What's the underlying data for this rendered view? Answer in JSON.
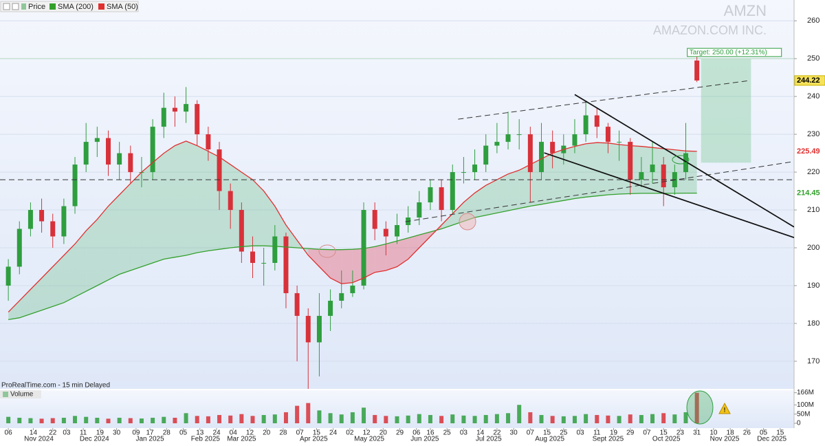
{
  "chart_data": {
    "type": "candlestick",
    "title": "AMZN",
    "subtitle": "AMAZON.COM INC.",
    "source": "ProRealTime.com - 15 min Delayed",
    "grid": true,
    "xlim": [
      -3,
      283
    ],
    "ylim": [
      162.7,
      265.5
    ],
    "yticks": [
      170,
      180,
      190,
      200,
      210,
      220,
      230,
      240,
      250,
      260
    ],
    "xticks": [
      {
        "value": 0,
        "label": "06"
      },
      {
        "value": 9,
        "label": "14"
      },
      {
        "value": 16,
        "label": "22"
      },
      {
        "value": 21,
        "label": "03"
      },
      {
        "value": 27,
        "label": "11"
      },
      {
        "value": 33,
        "label": "19"
      },
      {
        "value": 39,
        "label": "30"
      },
      {
        "value": 46,
        "label": "09"
      },
      {
        "value": 51,
        "label": "17"
      },
      {
        "value": 57,
        "label": "28"
      },
      {
        "value": 63,
        "label": "05"
      },
      {
        "value": 69,
        "label": "13"
      },
      {
        "value": 75,
        "label": "24"
      },
      {
        "value": 81,
        "label": "04"
      },
      {
        "value": 87,
        "label": "12"
      },
      {
        "value": 93,
        "label": "20"
      },
      {
        "value": 99,
        "label": "28"
      },
      {
        "value": 105,
        "label": "07"
      },
      {
        "value": 111,
        "label": "15"
      },
      {
        "value": 117,
        "label": "24"
      },
      {
        "value": 123,
        "label": "02"
      },
      {
        "value": 129,
        "label": "12"
      },
      {
        "value": 135,
        "label": "20"
      },
      {
        "value": 141,
        "label": "29"
      },
      {
        "value": 147,
        "label": "06"
      },
      {
        "value": 152,
        "label": "16"
      },
      {
        "value": 158,
        "label": "25"
      },
      {
        "value": 164,
        "label": "03"
      },
      {
        "value": 170,
        "label": "14"
      },
      {
        "value": 176,
        "label": "22"
      },
      {
        "value": 182,
        "label": "30"
      },
      {
        "value": 188,
        "label": "07"
      },
      {
        "value": 194,
        "label": "15"
      },
      {
        "value": 200,
        "label": "25"
      },
      {
        "value": 206,
        "label": "03"
      },
      {
        "value": 212,
        "label": "11"
      },
      {
        "value": 218,
        "label": "19"
      },
      {
        "value": 224,
        "label": "29"
      },
      {
        "value": 230,
        "label": "07"
      },
      {
        "value": 236,
        "label": "15"
      },
      {
        "value": 242,
        "label": "23"
      },
      {
        "value": 248,
        "label": "31"
      },
      {
        "value": 254,
        "label": "10"
      },
      {
        "value": 260,
        "label": "18"
      },
      {
        "value": 266,
        "label": "26"
      },
      {
        "value": 272,
        "label": "05"
      },
      {
        "value": 278,
        "label": "15"
      }
    ],
    "month_ticks": [
      {
        "value": 11,
        "label": "Nov 2024"
      },
      {
        "value": 31,
        "label": "Dec 2024"
      },
      {
        "value": 51,
        "label": "Jan 2025"
      },
      {
        "value": 71,
        "label": "Feb 2025"
      },
      {
        "value": 84,
        "label": "Mar 2025"
      },
      {
        "value": 110,
        "label": "Apr 2025"
      },
      {
        "value": 130,
        "label": "May 2025"
      },
      {
        "value": 150,
        "label": "Jun 2025"
      },
      {
        "value": 173,
        "label": "Jul 2025"
      },
      {
        "value": 195,
        "label": "Aug 2025"
      },
      {
        "value": 216,
        "label": "Sept 2025"
      },
      {
        "value": 237,
        "label": "Oct 2025"
      },
      {
        "value": 258,
        "label": "Nov 2025"
      },
      {
        "value": 275,
        "label": "Dec 2025"
      }
    ],
    "candles": {
      "name": "Price",
      "up_color": "#2e9e3e",
      "down_color": "#d8313a",
      "x": [
        0,
        4,
        8,
        12,
        16,
        20,
        24,
        28,
        32,
        36,
        40,
        44,
        48,
        52,
        56,
        60,
        64,
        68,
        72,
        76,
        80,
        84,
        88,
        92,
        96,
        100,
        104,
        108,
        112,
        116,
        120,
        124,
        128,
        132,
        136,
        140,
        144,
        148,
        152,
        156,
        160,
        164,
        168,
        172,
        176,
        180,
        184,
        188,
        192,
        196,
        200,
        204,
        208,
        212,
        216,
        220,
        224,
        228,
        232,
        236,
        240,
        244,
        248
      ],
      "open": [
        190,
        195,
        205,
        210,
        207,
        203,
        211,
        222,
        228,
        229,
        222,
        225,
        220,
        220,
        232,
        237,
        236,
        238,
        230,
        226,
        215,
        210,
        199,
        196,
        196,
        203,
        188,
        182,
        175,
        182,
        186,
        188,
        190,
        210,
        205,
        203,
        206,
        208,
        212,
        216,
        210,
        220,
        220,
        222,
        227,
        228,
        230,
        230,
        220,
        228,
        225,
        227,
        230,
        235,
        232,
        228,
        228,
        218,
        220,
        222,
        216,
        220,
        249.5
      ],
      "high": [
        197,
        207,
        212,
        213,
        209,
        213,
        224,
        233,
        232,
        231,
        228,
        227,
        224,
        234,
        241,
        240,
        242.5,
        239,
        232,
        228,
        217,
        212,
        203,
        200,
        206,
        204,
        190,
        184,
        188,
        189,
        194,
        194,
        212,
        212,
        207,
        209,
        211,
        215,
        218,
        218,
        222,
        224,
        226,
        230,
        233,
        236,
        234,
        232,
        233,
        231,
        230,
        234,
        238.9,
        237,
        233,
        231,
        229,
        224,
        228,
        224,
        222,
        233,
        250.5
      ],
      "low": [
        186,
        193,
        203,
        204,
        200,
        201,
        209,
        220,
        224,
        219,
        218,
        217,
        216,
        218,
        229,
        232,
        233,
        227,
        223,
        210,
        205,
        196,
        192,
        190,
        194,
        184,
        170,
        161.5,
        166,
        178,
        184,
        187,
        189,
        202,
        198,
        201,
        204,
        206,
        210,
        207,
        209,
        217,
        218,
        220,
        225,
        226,
        226,
        212,
        218,
        221,
        222,
        225,
        228,
        229,
        225,
        223,
        214,
        216,
        217,
        211,
        214,
        218,
        243.8
      ],
      "close": [
        195,
        205,
        210,
        207,
        203,
        211,
        222,
        228,
        229,
        222,
        225,
        220,
        220,
        232,
        237,
        236,
        238,
        230,
        226,
        215,
        210,
        199,
        196,
        196,
        203,
        188,
        182,
        175,
        182,
        186,
        188,
        190,
        210,
        205,
        203,
        206,
        208,
        212,
        216,
        210,
        220,
        220,
        222,
        227,
        228,
        230,
        230,
        220,
        228,
        225,
        227,
        230,
        235,
        232,
        228,
        228,
        218,
        220,
        222,
        216,
        220,
        225,
        244.22
      ]
    },
    "series": [
      {
        "name": "SMA (200)",
        "color": "#33a02c",
        "values": [
          181,
          181.5,
          182.5,
          183.5,
          184.5,
          185.5,
          187,
          188.5,
          190,
          191.5,
          193,
          194,
          195,
          196,
          197,
          197.5,
          198,
          198.7,
          199.2,
          199.6,
          200,
          200.3,
          200.5,
          200.5,
          200.4,
          200.2,
          200,
          199.8,
          199.6,
          199.5,
          199.5,
          199.6,
          199.8,
          200.3,
          201,
          201.8,
          202.6,
          203.4,
          204.2,
          205,
          206,
          207,
          208,
          208.6,
          209.2,
          209.8,
          210.4,
          211,
          211.5,
          212,
          212.5,
          213,
          213.4,
          213.7,
          214,
          214.2,
          214.3,
          214.4,
          214.4,
          214.4,
          214.4,
          214.45,
          214.45
        ]
      },
      {
        "name": "SMA (50)",
        "color": "#e03030",
        "values": [
          183,
          186,
          189,
          192,
          195,
          198,
          201,
          204.5,
          207.5,
          211,
          214,
          217,
          220,
          222.5,
          225,
          227,
          228.2,
          227,
          225.5,
          224,
          222,
          220,
          218,
          215,
          211,
          206,
          202,
          198,
          195,
          192,
          190.5,
          190.8,
          192,
          193.5,
          194,
          195,
          197,
          200,
          203,
          206,
          209,
          212,
          214.5,
          216.5,
          218,
          219.5,
          220.5,
          222,
          223.5,
          225,
          226,
          226.8,
          227.5,
          227.8,
          227.7,
          227.3,
          227,
          226.8,
          226.5,
          226.2,
          225.9,
          225.6,
          225.49
        ]
      }
    ],
    "volume": {
      "name": "Volume",
      "ylim": [
        0,
        172000000
      ],
      "yticks": [
        0,
        {
          "value": 50000000,
          "label": "50M"
        },
        {
          "value": 100000000,
          "label": "100M"
        },
        {
          "value": 166000000,
          "label": "166M"
        }
      ],
      "values": [
        35000000,
        30000000,
        28000000,
        25000000,
        28000000,
        30000000,
        40000000,
        35000000,
        30000000,
        25000000,
        30000000,
        28000000,
        26000000,
        30000000,
        35000000,
        30000000,
        55000000,
        40000000,
        38000000,
        45000000,
        42000000,
        50000000,
        40000000,
        45000000,
        48000000,
        60000000,
        95000000,
        110000000,
        70000000,
        55000000,
        48000000,
        60000000,
        85000000,
        45000000,
        40000000,
        38000000,
        42000000,
        50000000,
        45000000,
        40000000,
        48000000,
        42000000,
        40000000,
        45000000,
        50000000,
        55000000,
        100000000,
        60000000,
        45000000,
        40000000,
        38000000,
        40000000,
        50000000,
        45000000,
        42000000,
        40000000,
        48000000,
        45000000,
        50000000,
        55000000,
        48000000,
        60000000,
        166000000
      ]
    },
    "trendlines": [
      {
        "style": "dashed",
        "x": [
          162,
          267
        ],
        "y": [
          234.0,
          244.2
        ]
      },
      {
        "style": "dashed",
        "x": [
          143,
          282
        ],
        "y": [
          206.9,
          222.7
        ]
      },
      {
        "style": "solid",
        "x": [
          204,
          283
        ],
        "y": [
          240.5,
          205.5
        ]
      },
      {
        "style": "solid",
        "x": [
          193,
          283
        ],
        "y": [
          225.1,
          202.7
        ]
      },
      {
        "style": "dashed",
        "x": [
          -3,
          283
        ],
        "y": [
          218.0,
          218.0
        ]
      }
    ],
    "target": {
      "label": "Target: 250.00 (+12.31%)",
      "value": 250,
      "bottom": 222.5,
      "x": [
        249.5,
        267.5
      ]
    }
  }
}
